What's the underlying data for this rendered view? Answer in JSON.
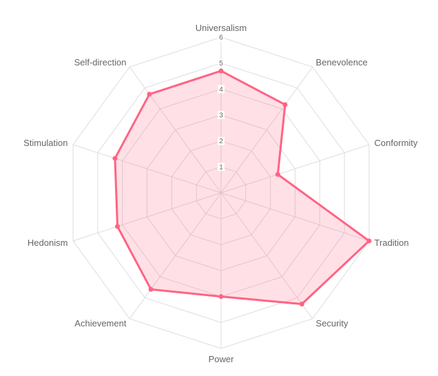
{
  "chart_data": {
    "type": "radar",
    "axes": [
      "Universalism",
      "Benevolence",
      "Conformity",
      "Tradition",
      "Security",
      "Power",
      "Achievement",
      "Hedonism",
      "Stimulation",
      "Self-direction"
    ],
    "values": [
      4.7,
      4.2,
      2.3,
      6.0,
      5.3,
      4.0,
      4.6,
      4.2,
      4.3,
      4.7
    ],
    "rlim": [
      0,
      6
    ],
    "ticks": [
      "1",
      "2",
      "3",
      "4",
      "5",
      "6"
    ],
    "grid": true,
    "legend": "none",
    "colors": {
      "line": "#ff6384",
      "fill": "rgba(255, 99, 132, 0.2)",
      "grid": "#dddddd",
      "text": "#666666"
    }
  }
}
